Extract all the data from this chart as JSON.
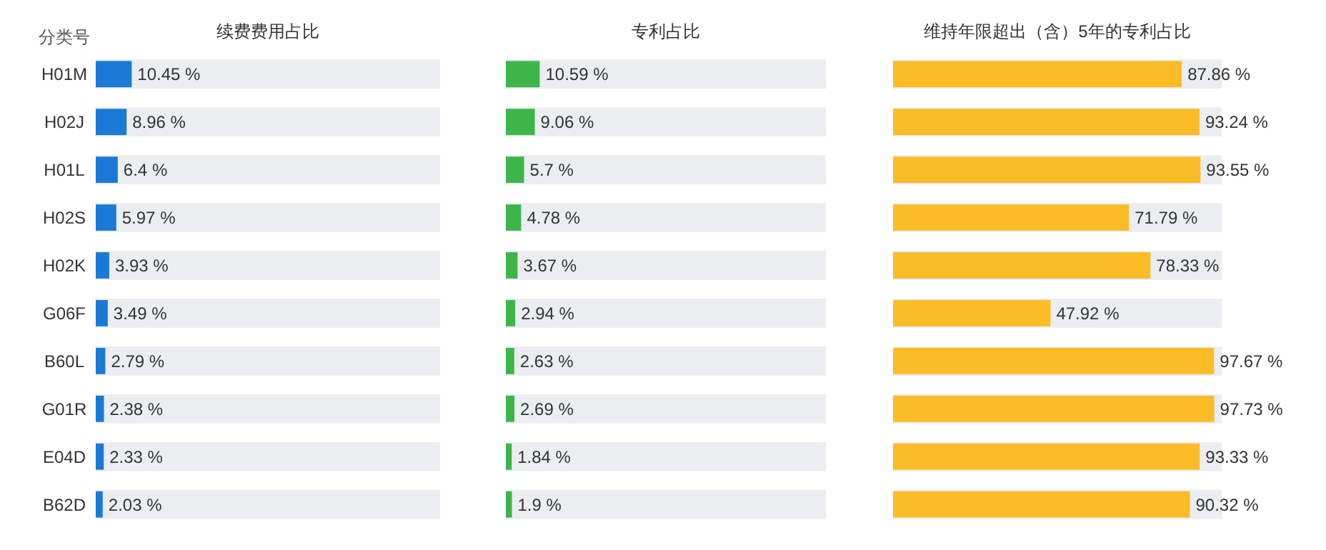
{
  "chart_data": [
    {
      "type": "bar",
      "orientation": "horizontal",
      "title": "续费费用占比",
      "ylabel": "分类号",
      "categories": [
        "H01M",
        "H02J",
        "H01L",
        "H02S",
        "H02K",
        "G06F",
        "B60L",
        "G01R",
        "E04D",
        "B62D"
      ],
      "values": [
        10.45,
        8.96,
        6.4,
        5.97,
        3.93,
        3.49,
        2.79,
        2.38,
        2.33,
        2.03
      ],
      "value_labels": [
        "10.45 %",
        "8.96 %",
        "6.4 %",
        "5.97 %",
        "3.93 %",
        "3.49 %",
        "2.79 %",
        "2.38 %",
        "2.33 %",
        "2.03 %"
      ],
      "color": "#1a7ad6",
      "xlim": [
        0,
        100
      ],
      "tick_labels": "y"
    },
    {
      "type": "bar",
      "orientation": "horizontal",
      "title": "专利占比",
      "categories": [
        null,
        null,
        null,
        null,
        null,
        null,
        null,
        null,
        null,
        null
      ],
      "values": [
        10.59,
        9.06,
        5.7,
        4.78,
        3.67,
        2.94,
        2.63,
        2.69,
        1.84,
        1.9
      ],
      "value_labels": [
        "10.59 %",
        "9.06 %",
        "5.7 %",
        "4.78 %",
        "3.67 %",
        "2.94 %",
        "2.63 %",
        "2.69 %",
        "1.84 %",
        "1.9 %"
      ],
      "color": "#3db54a",
      "xlim": [
        0,
        100
      ]
    },
    {
      "type": "bar",
      "orientation": "horizontal",
      "title": "维持年限超出（含）5年的专利占比",
      "categories": [
        null,
        null,
        null,
        null,
        null,
        null,
        null,
        null,
        null,
        null
      ],
      "values": [
        87.86,
        93.24,
        93.55,
        71.79,
        78.33,
        47.92,
        97.67,
        97.73,
        93.33,
        90.32
      ],
      "value_labels": [
        "87.86 %",
        "93.24 %",
        "93.55 %",
        "71.79 %",
        "78.33 %",
        "47.92 %",
        "97.67 %",
        "97.73 %",
        "93.33 %",
        "90.32 %"
      ],
      "color": "#fbbc28",
      "xlim": [
        0,
        100
      ]
    }
  ]
}
